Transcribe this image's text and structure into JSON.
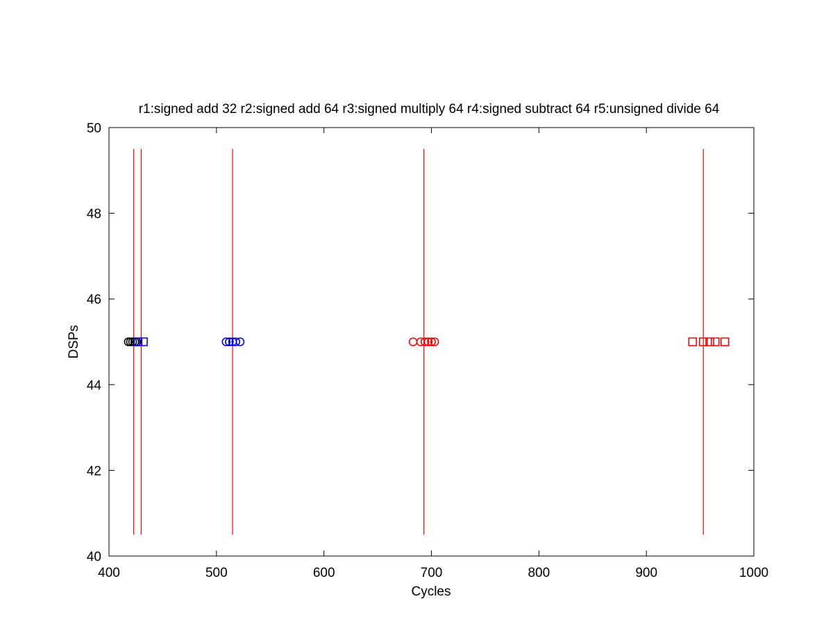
{
  "chart_data": {
    "type": "scatter",
    "title": "r1:signed add 32 r2:signed add 64 r3:signed multiply 64 r4:signed subtract 64 r5:unsigned divide 64",
    "xlabel": "Cycles",
    "ylabel": "DSPs",
    "xlim": [
      400,
      1000
    ],
    "ylim": [
      40,
      50
    ],
    "xticks": [
      400,
      500,
      600,
      700,
      800,
      900,
      1000
    ],
    "yticks": [
      40,
      42,
      44,
      46,
      48,
      50
    ],
    "grid": false,
    "legend": "none",
    "series": [
      {
        "marker": "circle",
        "color": "#000000",
        "points": [
          [
            418,
            45
          ],
          [
            420,
            45
          ],
          [
            422,
            45
          ],
          [
            424,
            45
          ],
          [
            426,
            45
          ]
        ]
      },
      {
        "marker": "square",
        "color": "#0000ff",
        "points": [
          [
            427,
            45
          ],
          [
            432,
            45
          ]
        ]
      },
      {
        "marker": "circle",
        "color": "#0000ff",
        "points": [
          [
            509,
            45
          ],
          [
            512,
            45
          ],
          [
            515,
            45
          ],
          [
            518,
            45
          ],
          [
            522,
            45
          ]
        ]
      },
      {
        "marker": "circle",
        "color": "#ff0000",
        "points": [
          [
            683,
            45
          ],
          [
            690,
            45
          ],
          [
            694,
            45
          ],
          [
            697,
            45
          ],
          [
            700,
            45
          ],
          [
            703,
            45
          ]
        ]
      },
      {
        "marker": "square",
        "color": "#ff0000",
        "points": [
          [
            943,
            45
          ],
          [
            953,
            45
          ],
          [
            959,
            45
          ],
          [
            964,
            45
          ],
          [
            973,
            45
          ]
        ]
      }
    ],
    "vlines": {
      "color": "#ff0000",
      "x": [
        423,
        430,
        515,
        693,
        953
      ],
      "y_range": [
        40.5,
        49.5
      ]
    }
  }
}
